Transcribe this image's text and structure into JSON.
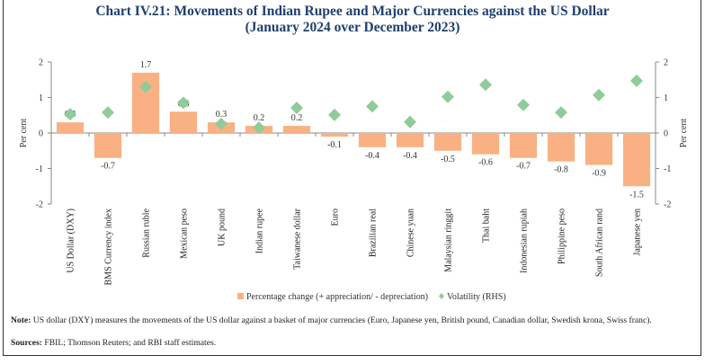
{
  "title_line1": "Chart IV.21: Movements of Indian Rupee and Major Currencies against the US Dollar",
  "title_line2": "(January 2024 over December 2023)",
  "chart_data": {
    "type": "bar",
    "categories": [
      "US Dollar (DXY)",
      "BMS Currency index",
      "Russian ruble",
      "Mexican peso",
      "UK pound",
      "Indian rupee",
      "Taiwanese dollar",
      "Euro",
      "Brazilian real",
      "Chinese yuan",
      "Malaysian ringgit",
      "Thai baht",
      "Indonesian rupiah",
      "Philippine peso",
      "South African rand",
      "Japanese yen"
    ],
    "series": [
      {
        "name": "Percentage change (+ appreciation/ - depreciation)",
        "type": "bar",
        "axis": "left",
        "color": "#f9b183",
        "values": [
          0.3,
          -0.7,
          1.7,
          0.6,
          0.3,
          0.2,
          0.2,
          -0.1,
          -0.4,
          -0.4,
          -0.5,
          -0.6,
          -0.7,
          -0.8,
          -0.9,
          -1.5
        ],
        "labels": [
          "0.3",
          "-0.7",
          "1.7",
          "0.6",
          "0.3",
          "0.2",
          "0.2",
          "-0.1",
          "-0.4",
          "-0.4",
          "-0.5",
          "-0.6",
          "-0.7",
          "-0.8",
          "-0.9",
          "-1.5"
        ]
      },
      {
        "name": "Volatility (RHS)",
        "type": "scatter",
        "marker": "diamond",
        "axis": "right",
        "color": "#8fcc9a",
        "values": [
          0.53,
          0.58,
          1.3,
          0.85,
          0.26,
          0.15,
          0.71,
          0.51,
          0.75,
          0.31,
          1.02,
          1.36,
          0.79,
          0.58,
          1.07,
          1.47
        ]
      }
    ],
    "ylabel": "Per cent",
    "y2label": "Per cent",
    "ylim": [
      -2,
      2
    ],
    "y2lim": [
      -2,
      2
    ],
    "yticks": [
      "2",
      "1",
      "0",
      "-1",
      "-2"
    ],
    "grid": false,
    "legend": "bottom"
  },
  "note_label": "Note:",
  "note_text": " US dollar (DXY) measures the movements of the US dollar against a basket of major currencies (Euro, Japanese yen, British pound, Canadian dollar, Swedish krona, Swiss franc).",
  "sources_label": "Sources:",
  "sources_text": " FBIL; Thomson Reuters; and RBI staff estimates."
}
